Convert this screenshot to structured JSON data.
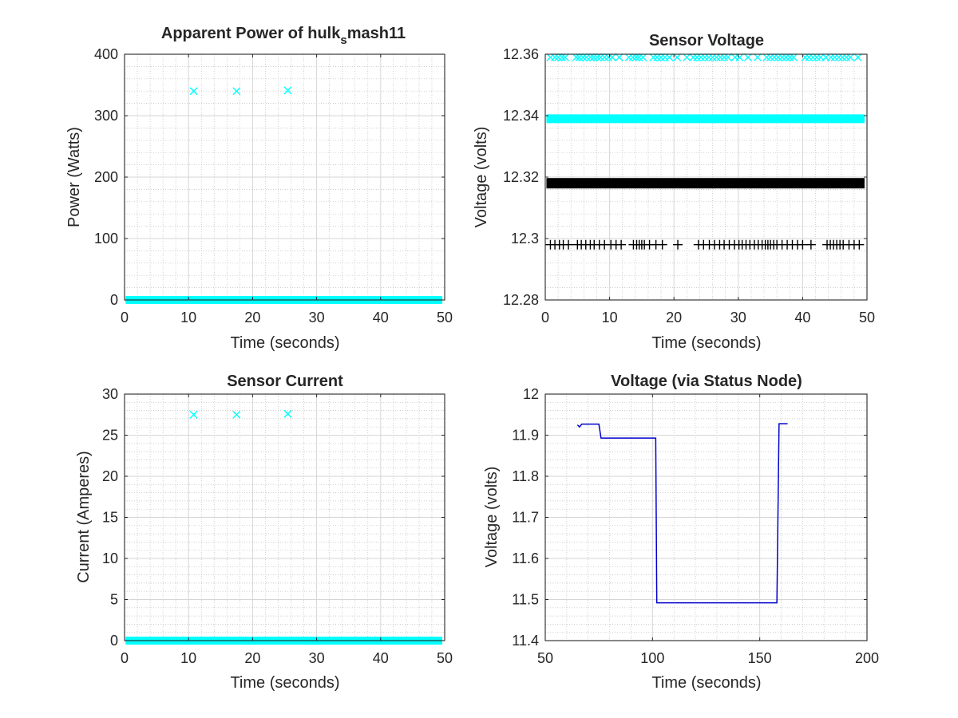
{
  "chart_data": [
    {
      "type": "scatter",
      "title": "Apparent Power of hulk",
      "title_subscript": "s",
      "title_suffix": "mash11",
      "xlabel": "Time (seconds)",
      "ylabel": "Power (Watts)",
      "xlim": [
        0,
        50
      ],
      "ylim": [
        0,
        400
      ],
      "xticks": [
        0,
        10,
        20,
        30,
        40,
        50
      ],
      "yticks": [
        0,
        100,
        200,
        300,
        400
      ],
      "grid": "major and minor",
      "series": [
        {
          "marker": "x",
          "color": "#00FFFF",
          "band": {
            "x": [
              0.8,
              49
            ],
            "y": 0
          },
          "points": [
            [
              10.8,
              340
            ],
            [
              17.5,
              340
            ],
            [
              25.5,
              341
            ]
          ]
        },
        {
          "marker": "+",
          "color": "#000000",
          "band": {
            "x": [
              0.8,
              49
            ],
            "y": 0
          },
          "points": []
        }
      ]
    },
    {
      "type": "scatter",
      "title": "Sensor Voltage",
      "xlabel": "Time (seconds)",
      "ylabel": "Voltage (volts)",
      "xlim": [
        0,
        50
      ],
      "ylim": [
        12.28,
        12.36
      ],
      "xticks": [
        0,
        10,
        20,
        30,
        40,
        50
      ],
      "yticks": [
        12.28,
        12.3,
        12.32,
        12.34,
        12.36
      ],
      "ytick_labels": [
        "12.28",
        "12.3",
        "12.32",
        "12.34",
        "12.36"
      ],
      "grid": "major and minor",
      "series": [
        {
          "marker": "x",
          "color": "#00FFFF",
          "band": null,
          "points_y": 12.359,
          "points_x": [
            0.8,
            1.5,
            2.0,
            2.6,
            3.1,
            4.8,
            5.3,
            5.9,
            6.4,
            7.0,
            7.5,
            8.1,
            8.6,
            9.2,
            9.8,
            10.4,
            11.5,
            13.0,
            13.6,
            14.1,
            14.6,
            15.2,
            16.8,
            17.4,
            18.0,
            18.6,
            19.3,
            20.5,
            22.0,
            23.0,
            23.6,
            24.2,
            24.8,
            25.4,
            26.0,
            26.6,
            27.2,
            27.8,
            28.4,
            29.5,
            30.2,
            31.5,
            33.0,
            34.4,
            35.0,
            35.6,
            36.2,
            36.8,
            37.4,
            38.0,
            38.6,
            40.4,
            41.0,
            41.6,
            42.2,
            42.8,
            43.6,
            44.4,
            45.0,
            45.6,
            46.2,
            46.8,
            47.4,
            48.6
          ],
          "band_y": 12.339,
          "band_x": [
            0.8,
            49
          ]
        },
        {
          "marker": "+",
          "color": "#000000",
          "band_y": 12.318,
          "band_x": [
            0.8,
            49
          ],
          "points_y": 12.298,
          "points_x": [
            0.8,
            1.5,
            2.2,
            2.8,
            3.6,
            5.0,
            5.6,
            6.3,
            7.0,
            7.6,
            8.4,
            9.2,
            10.2,
            11.0,
            11.8,
            13.7,
            14.2,
            14.6,
            15.0,
            15.4,
            16.2,
            17.2,
            18.2,
            20.6,
            23.8,
            24.6,
            25.5,
            26.3,
            27.1,
            27.8,
            28.6,
            29.4,
            30.1,
            30.6,
            31.2,
            31.8,
            32.5,
            33.1,
            33.7,
            34.2,
            34.6,
            35.0,
            35.5,
            36.0,
            36.8,
            37.6,
            38.4,
            39.2,
            40.0,
            41.3,
            43.8,
            44.3,
            44.8,
            45.3,
            45.8,
            46.3,
            47.2,
            48.0,
            48.8
          ]
        }
      ]
    },
    {
      "type": "scatter",
      "title": "Sensor Current",
      "xlabel": "Time (seconds)",
      "ylabel": "Current (Amperes)",
      "xlim": [
        0,
        50
      ],
      "ylim": [
        0,
        30
      ],
      "xticks": [
        0,
        10,
        20,
        30,
        40,
        50
      ],
      "yticks": [
        0,
        5,
        10,
        15,
        20,
        25,
        30
      ],
      "grid": "major and minor",
      "series": [
        {
          "marker": "x",
          "color": "#00FFFF",
          "band": {
            "x": [
              0.8,
              49
            ],
            "y": 0
          },
          "points": [
            [
              10.8,
              27.5
            ],
            [
              17.5,
              27.5
            ],
            [
              25.5,
              27.6
            ]
          ]
        },
        {
          "marker": "+",
          "color": "#000000",
          "band": {
            "x": [
              0.8,
              49
            ],
            "y": 0
          },
          "points": []
        }
      ]
    },
    {
      "type": "line",
      "title": "Voltage (via Status Node)",
      "xlabel": "Time (seconds)",
      "ylabel": "Voltage (volts)",
      "xlim": [
        50,
        200
      ],
      "ylim": [
        11.4,
        12
      ],
      "xticks": [
        50,
        100,
        150,
        200
      ],
      "yticks": [
        11.4,
        11.5,
        11.6,
        11.7,
        11.8,
        11.9,
        12
      ],
      "ytick_labels": [
        "11.4",
        "11.5",
        "11.6",
        "11.7",
        "11.8",
        "11.9",
        "12"
      ],
      "grid": "major and minor",
      "series": [
        {
          "color": "#0000CC",
          "x": [
            65,
            66,
            67,
            68,
            75,
            76,
            101.5,
            102,
            158,
            159,
            163
          ],
          "y": [
            11.925,
            11.92,
            11.927,
            11.927,
            11.927,
            11.893,
            11.893,
            11.492,
            11.492,
            11.928,
            11.928
          ]
        }
      ]
    }
  ]
}
